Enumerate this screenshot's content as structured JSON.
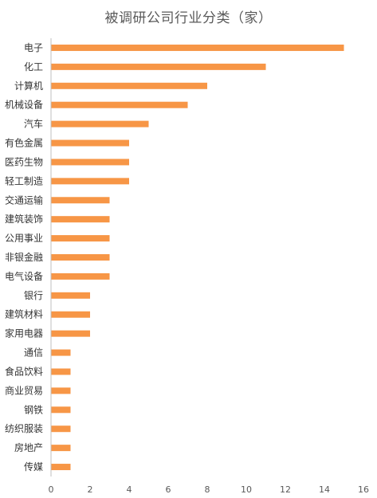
{
  "chart_data": {
    "type": "bar",
    "orientation": "horizontal",
    "title": "被调研公司行业分类（家）",
    "categories": [
      "电子",
      "化工",
      "计算机",
      "机械设备",
      "汽车",
      "有色金属",
      "医药生物",
      "轻工制造",
      "交通运输",
      "建筑装饰",
      "公用事业",
      "非银金融",
      "电气设备",
      "银行",
      "建筑材料",
      "家用电器",
      "通信",
      "食品饮料",
      "商业贸易",
      "钢铁",
      "纺织服装",
      "房地产",
      "传媒"
    ],
    "values": [
      15,
      11,
      8,
      7,
      5,
      4,
      4,
      4,
      3,
      3,
      3,
      3,
      3,
      2,
      2,
      2,
      1,
      1,
      1,
      1,
      1,
      1,
      1
    ],
    "xlim": [
      0,
      16
    ],
    "xticks": [
      0,
      2,
      4,
      6,
      8,
      10,
      12,
      14,
      16
    ],
    "xticklabels": [
      "0",
      "2",
      "4",
      "6",
      "8",
      "10",
      "12",
      "14",
      "16"
    ],
    "grid": false,
    "colors": {
      "bar": "#F79646",
      "axis": "#BFBFBF",
      "label": "#333333",
      "tick": "#595959"
    }
  }
}
